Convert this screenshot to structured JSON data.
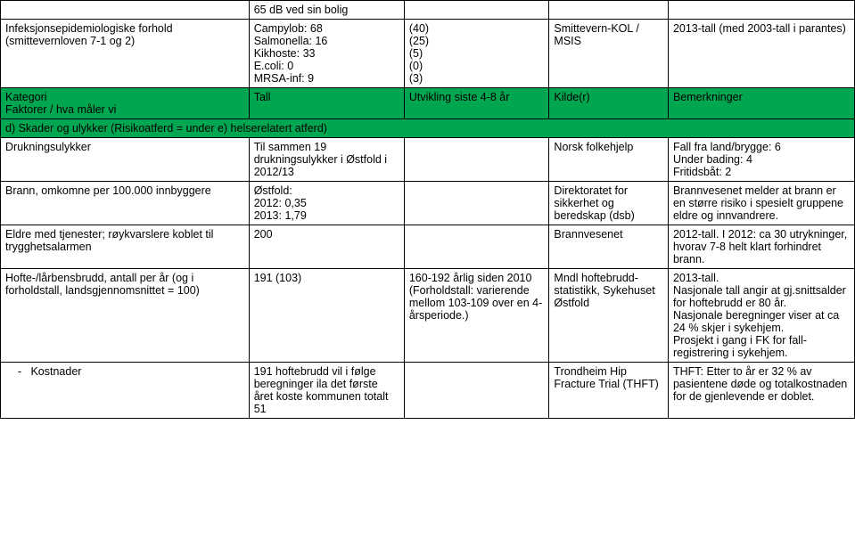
{
  "rows": {
    "r1": {
      "c0": "",
      "c1": "65 dB ved sin bolig",
      "c2": "",
      "c3": "",
      "c4": ""
    },
    "r2": {
      "c0": "Infeksjonsepidemiologiske forhold (smittevernloven 7-1 og 2)",
      "c1": "Campylob: 68\nSalmonella: 16\nKikhoste: 33\nE.coli: 0\nMRSA-inf: 9",
      "c2": "(40)\n(25)\n(5)\n(0)\n(3)",
      "c3": "Smittevern-KOL / MSIS",
      "c4": "2013-tall (med 2003-tall i parantes)"
    },
    "green1a": {
      "c0a": "Kategori",
      "c0b": "Faktorer / hva måler vi",
      "c1": "Tall",
      "c2": "Utvikling siste 4-8 år",
      "c3": "Kilde(r)",
      "c4": "Bemerkninger"
    },
    "green1b": {
      "c0": "d)  Skader og ulykker (Risikoatferd = under e) helserelatert atferd)"
    },
    "r3": {
      "c0": "Drukningsulykker",
      "c1": "Til sammen 19 drukningsulykker i Østfold i 2012/13",
      "c2": "",
      "c3": "Norsk folkehjelp",
      "c4": "Fall fra land/brygge: 6\nUnder bading: 4\nFritidsbåt: 2"
    },
    "r4": {
      "c0": "Brann, omkomne per 100.000 innbyggere",
      "c1": "Østfold:\n2012: 0,35\n2013: 1,79",
      "c2": "",
      "c3": "Direktoratet for sikkerhet og beredskap (dsb)",
      "c4": "Brannvesenet melder at brann er en større risiko i spesielt gruppene eldre og innvandrere."
    },
    "r5": {
      "c0": "Eldre med tjenester; røykvarslere koblet til trygghetsalarmen",
      "c1": "200",
      "c2": "",
      "c3": "Brannvesenet",
      "c4": "2012-tall. I 2012: ca 30 utrykninger, hvorav 7-8 helt klart forhindret brann."
    },
    "r6": {
      "c0": "Hofte-/lårbensbrudd, antall per år (og i forholdstall, landsgjennomsnittet = 100)",
      "c1": "191 (103)",
      "c2": "160-192 årlig siden 2010\n(Forholdstall: varierende mellom 103-109 over en 4-årsperiode.)",
      "c3": "Mndl hoftebrudd-statistikk, Sykehuset Østfold",
      "c4": "2013-tall.\nNasjonale tall angir at gj.snittsalder for hoftebrudd er 80 år.\nNasjonale beregninger viser at ca 24 % skjer i sykehjem.\nProsjekt i gang i FK for fall-registrering i sykehjem."
    },
    "r7": {
      "c0": "    -   Kostnader",
      "c1": "191 hoftebrudd vil i følge beregninger ila det første året koste kommunen totalt 51",
      "c2": "",
      "c3": "Trondheim Hip Fracture Trial (THFT)",
      "c4": "THFT: Etter to år er 32 % av pasientene døde og totalkostnaden for de gjenlevende er doblet."
    }
  }
}
